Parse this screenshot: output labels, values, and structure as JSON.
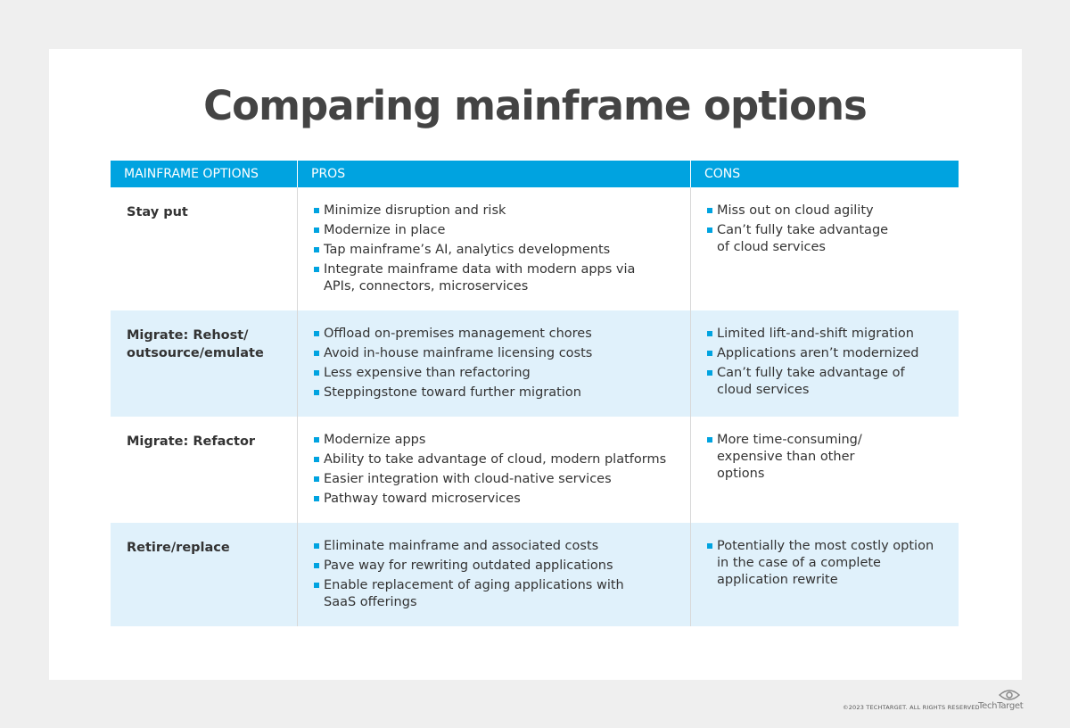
{
  "title": "Comparing mainframe options",
  "columns": [
    "MAINFRAME OPTIONS",
    "PROS",
    "CONS"
  ],
  "rows": [
    {
      "option": "Stay put",
      "pros": [
        "Minimize disruption and risk",
        "Modernize in place",
        "Tap mainframe’s AI, analytics developments",
        "Integrate mainframe data with modern apps via APIs, connectors, microservices"
      ],
      "cons": [
        "Miss out on cloud agility",
        "Can’t fully take advantage of cloud services"
      ]
    },
    {
      "option": "Migrate: Rehost/ outsource/emulate",
      "pros": [
        "Offload on-premises management chores",
        "Avoid in-house mainframe licensing costs",
        "Less expensive than refactoring",
        "Steppingstone toward further migration"
      ],
      "cons": [
        "Limited lift-and-shift migration",
        "Applications aren’t modernized",
        "Can’t fully take advantage of cloud services"
      ]
    },
    {
      "option": "Migrate: Refactor",
      "pros": [
        "Modernize apps",
        "Ability to take advantage of cloud, modern platforms",
        "Easier integration with cloud-native services",
        "Pathway toward microservices"
      ],
      "cons": [
        "More time-consuming/ expensive than other options"
      ]
    },
    {
      "option": "Retire/replace",
      "pros": [
        "Eliminate mainframe and associated costs",
        "Pave way for rewriting outdated applications",
        "Enable replacement of aging applications with SaaS offerings"
      ],
      "cons": [
        "Potentially the most costly option in the case of a complete application rewrite"
      ]
    }
  ],
  "footer": {
    "copyright": "©2023 TECHTARGET. ALL RIGHTS RESERVED",
    "logo": "TechTarget"
  },
  "colors": {
    "accent": "#00a3e0",
    "shaded_row": "#e0f1fb",
    "title": "#444444"
  }
}
